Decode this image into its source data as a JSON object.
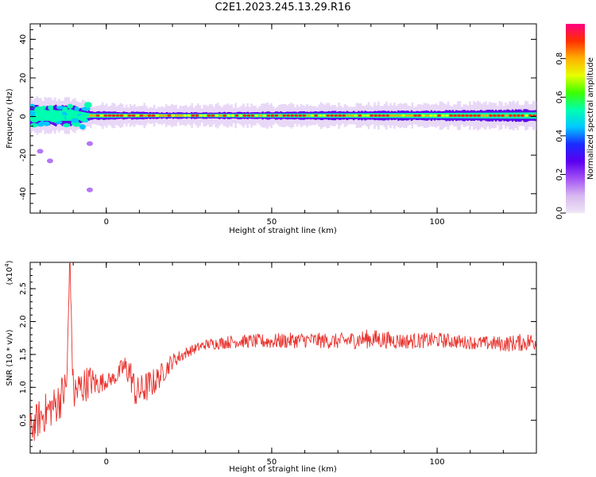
{
  "title": "C2E1.2023.245.13.29.R16",
  "colors": {
    "snr_line": "#e8322d",
    "axis": "#000000",
    "colormap": [
      "#f0e6f6",
      "#d7b8f0",
      "#a352f5",
      "#5a00f0",
      "#1a2bff",
      "#00c8ff",
      "#00ffb0",
      "#3cff00",
      "#e6ff00",
      "#ffb000",
      "#ff3000",
      "#ff0080"
    ]
  },
  "chart_data": [
    {
      "type": "heatmap",
      "name": "spectrogram",
      "xlabel": "Height of straight line (km)",
      "ylabel": "Frequency (Hz)",
      "xlim": [
        -23,
        130
      ],
      "ylim": [
        -50,
        48
      ],
      "x_ticks": [
        0,
        50,
        100
      ],
      "y_ticks": [
        -40,
        -20,
        0,
        20,
        40
      ],
      "ridge": {
        "center_frequency_hz": 0.5,
        "x_range": [
          -23,
          130
        ],
        "band_half_width_hz": [
          [
            -23,
            5
          ],
          [
            -10,
            5
          ],
          [
            -5,
            2
          ],
          [
            0,
            2
          ],
          [
            20,
            1.5
          ],
          [
            60,
            2
          ],
          [
            100,
            2.5
          ],
          [
            130,
            3
          ]
        ]
      },
      "blobs": [
        {
          "x": -20,
          "y": -18
        },
        {
          "x": -17,
          "y": -23
        },
        {
          "x": -5,
          "y": -14
        },
        {
          "x": -5,
          "y": -38
        }
      ],
      "colorbar": {
        "label": "Normalized spectral amplitude",
        "ticks": [
          "0.0",
          "0.2",
          "0.4",
          "0.6",
          "0.8"
        ],
        "tick_values": [
          0,
          0.2,
          0.4,
          0.6,
          0.8
        ],
        "range": [
          0,
          0.98
        ]
      }
    },
    {
      "type": "line",
      "name": "snr",
      "xlabel": "Height of straight line (km)",
      "ylabel": "SNR (10 * v/v)",
      "y_scale_label": "(x10",
      "y_scale_exponent": "4",
      "xlim": [
        -23,
        130
      ],
      "ylim": [
        0,
        2.9
      ],
      "x_ticks": [
        0,
        50,
        100
      ],
      "y_ticks": [
        "0.5",
        "1.0",
        "1.5",
        "2.0",
        "2.5"
      ],
      "y_tick_values": [
        0.5,
        1.0,
        1.5,
        2.0,
        2.5
      ],
      "series": [
        {
          "x": [
            -23,
            -20,
            -15,
            -12,
            -11,
            -10,
            -5,
            -3,
            0,
            3,
            5,
            7,
            9,
            12,
            15,
            20,
            25,
            30,
            35,
            40,
            50,
            60,
            70,
            80,
            90,
            100,
            110,
            120,
            130
          ],
          "y": [
            0.35,
            0.55,
            0.75,
            1.0,
            2.9,
            0.9,
            1.1,
            1.05,
            1.1,
            1.15,
            1.3,
            1.25,
            0.9,
            1.0,
            1.1,
            1.4,
            1.55,
            1.65,
            1.68,
            1.7,
            1.7,
            1.72,
            1.7,
            1.74,
            1.7,
            1.72,
            1.68,
            1.66,
            1.7
          ],
          "noise": [
            0.25,
            0.3,
            0.3,
            0.35,
            0,
            0.35,
            0.25,
            0.2,
            0.12,
            0.1,
            0.2,
            0.25,
            0.25,
            0.25,
            0.2,
            0.12,
            0.08,
            0.08,
            0.1,
            0.1,
            0.12,
            0.12,
            0.12,
            0.15,
            0.12,
            0.12,
            0.1,
            0.12,
            0.15
          ]
        }
      ]
    }
  ]
}
